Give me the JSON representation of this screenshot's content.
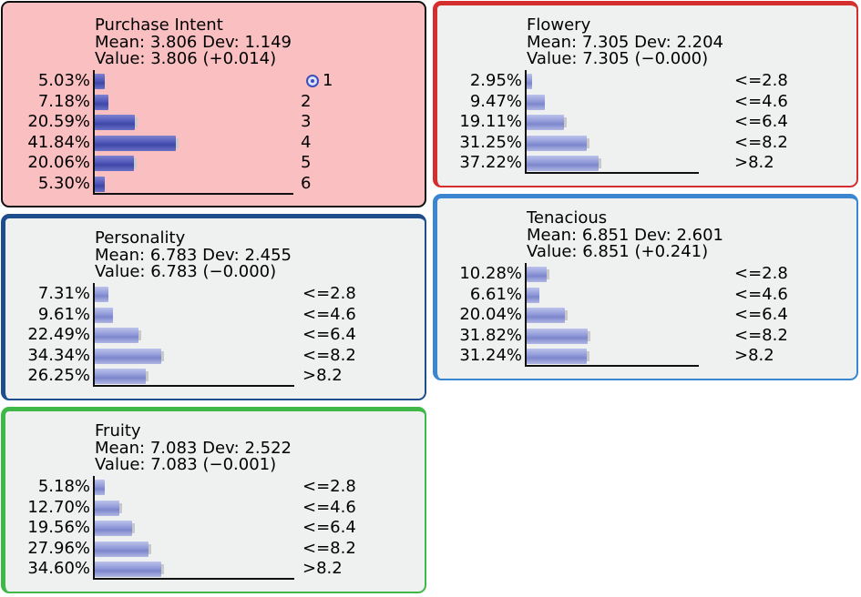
{
  "nodes": {
    "purchase_intent": {
      "title": "Purchase Intent",
      "mean_line": "Mean: 3.806 Dev: 1.149",
      "value_line": "Value: 3.806 (+0.014)",
      "border_color": "#111111",
      "fill": "#f9bfc1",
      "states": [
        {
          "pct": "5.03%",
          "value": 5.03,
          "label": "1",
          "target": true
        },
        {
          "pct": "7.18%",
          "value": 7.18,
          "label": "2"
        },
        {
          "pct": "20.59%",
          "value": 20.59,
          "label": "3"
        },
        {
          "pct": "41.84%",
          "value": 41.84,
          "label": "4"
        },
        {
          "pct": "20.06%",
          "value": 20.06,
          "label": "5"
        },
        {
          "pct": "5.30%",
          "value": 5.3,
          "label": "6"
        }
      ]
    },
    "flowery": {
      "title": "Flowery",
      "mean_line": "Mean: 7.305 Dev: 2.204",
      "value_line": "Value: 7.305 (−0.000)",
      "border_color": "#d42e2e",
      "fill": "#eff0f0",
      "states": [
        {
          "pct": "2.95%",
          "value": 2.95,
          "label": "<=2.8"
        },
        {
          "pct": "9.47%",
          "value": 9.47,
          "label": "<=4.6"
        },
        {
          "pct": "19.11%",
          "value": 19.11,
          "label": "<=6.4"
        },
        {
          "pct": "31.25%",
          "value": 31.25,
          "label": "<=8.2"
        },
        {
          "pct": "37.22%",
          "value": 37.22,
          "label": ">8.2"
        }
      ]
    },
    "personality": {
      "title": "Personality",
      "mean_line": "Mean: 6.783 Dev: 2.455",
      "value_line": "Value: 6.783 (−0.000)",
      "border_color": "#1f4e8c",
      "fill": "#eff0f0",
      "states": [
        {
          "pct": "7.31%",
          "value": 7.31,
          "label": "<=2.8"
        },
        {
          "pct": "9.61%",
          "value": 9.61,
          "label": "<=4.6"
        },
        {
          "pct": "22.49%",
          "value": 22.49,
          "label": "<=6.4"
        },
        {
          "pct": "34.34%",
          "value": 34.34,
          "label": "<=8.2"
        },
        {
          "pct": "26.25%",
          "value": 26.25,
          "label": ">8.2"
        }
      ]
    },
    "tenacious": {
      "title": "Tenacious",
      "mean_line": "Mean: 6.851 Dev: 2.601",
      "value_line": "Value: 6.851 (+0.241)",
      "border_color": "#3b86d1",
      "fill": "#eff0f0",
      "states": [
        {
          "pct": "10.28%",
          "value": 10.28,
          "label": "<=2.8"
        },
        {
          "pct": "6.61%",
          "value": 6.61,
          "label": "<=4.6"
        },
        {
          "pct": "20.04%",
          "value": 20.04,
          "label": "<=6.4"
        },
        {
          "pct": "31.82%",
          "value": 31.82,
          "label": "<=8.2"
        },
        {
          "pct": "31.24%",
          "value": 31.24,
          "label": ">8.2"
        }
      ]
    },
    "fruity": {
      "title": "Fruity",
      "mean_line": "Mean: 7.083 Dev: 2.522",
      "value_line": "Value: 7.083 (−0.001)",
      "border_color": "#3fb848",
      "fill": "#eff0f0",
      "states": [
        {
          "pct": "5.18%",
          "value": 5.18,
          "label": "<=2.8"
        },
        {
          "pct": "12.70%",
          "value": 12.7,
          "label": "<=4.6"
        },
        {
          "pct": "19.56%",
          "value": 19.56,
          "label": "<=6.4"
        },
        {
          "pct": "27.96%",
          "value": 27.96,
          "label": "<=8.2"
        },
        {
          "pct": "34.60%",
          "value": 34.6,
          "label": ">8.2"
        }
      ]
    }
  }
}
